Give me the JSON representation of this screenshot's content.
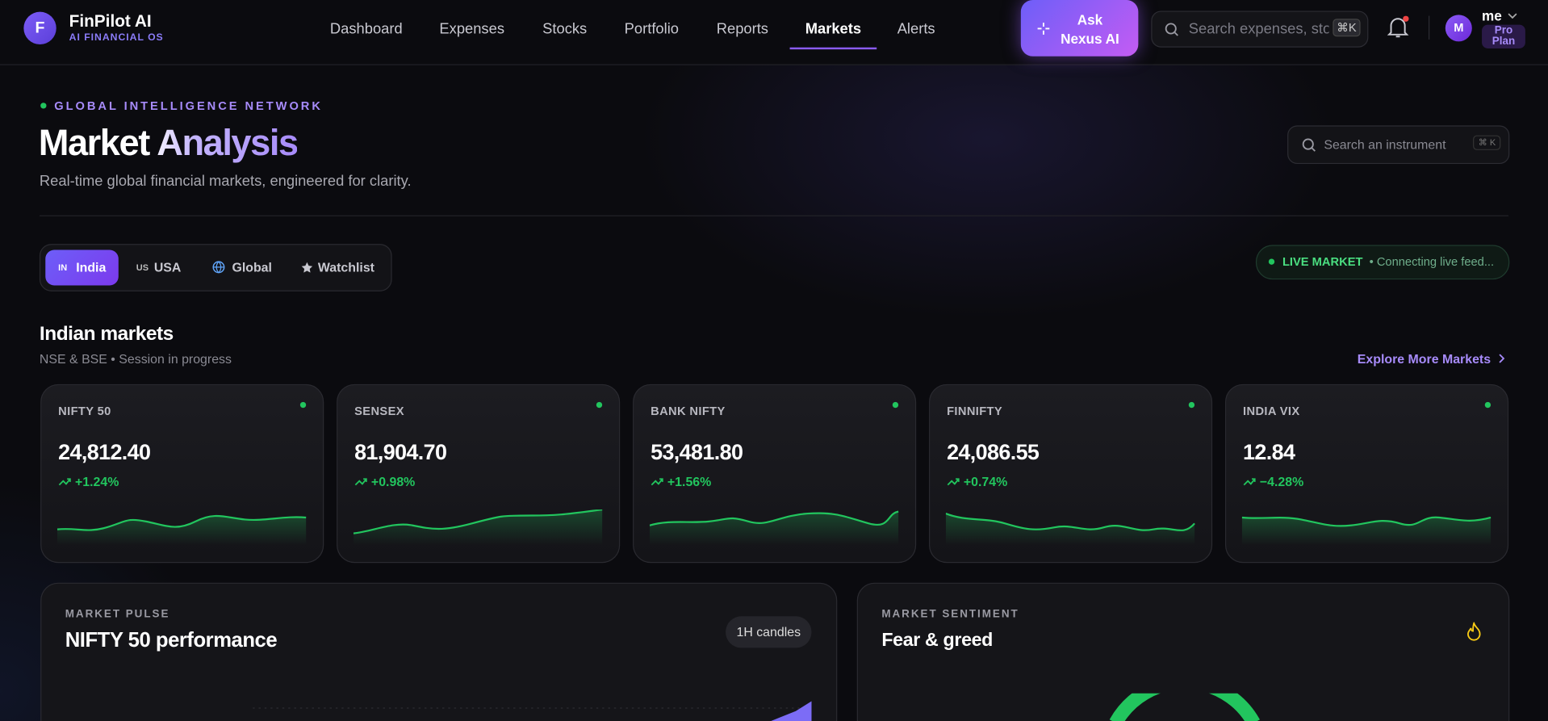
{
  "brand": {
    "logo": "F",
    "name": "FinPilot AI",
    "tagline": "AI FINANCIAL OS"
  },
  "nav": [
    "Dashboard",
    "Expenses",
    "Stocks",
    "Portfolio",
    "Reports",
    "Markets",
    "Alerts"
  ],
  "ask_button": "Ask Nexus AI",
  "search": {
    "placeholder": "Search expenses, stoc",
    "shortcut": "⌘K"
  },
  "user": {
    "avatar": "M",
    "name": "me",
    "plan": "Pro Plan"
  },
  "page": {
    "eyebrow": "GLOBAL INTELLIGENCE NETWORK",
    "title": "Market Analysis",
    "subtitle": "Real-time global financial markets, engineered for clarity.",
    "instrument_search": "Search an instrument",
    "instrument_shortcut": "⌘ K"
  },
  "tabs": [
    {
      "flag": "IN",
      "label": "India"
    },
    {
      "flag": "US",
      "label": "USA"
    },
    {
      "label": "Global"
    },
    {
      "label": "Watchlist"
    }
  ],
  "live": {
    "status": "LIVE MARKET",
    "message": "• Connecting live feed..."
  },
  "section": {
    "title": "Indian markets",
    "subtitle": "NSE & BSE • Session in progress",
    "link": "Explore More Markets"
  },
  "cards": [
    {
      "name": "NIFTY 50",
      "value": "24,812.40",
      "change": "+1.24%"
    },
    {
      "name": "SENSEX",
      "value": "81,904.70",
      "change": "+0.98%"
    },
    {
      "name": "BANK NIFTY",
      "value": "53,481.80",
      "change": "+1.56%"
    },
    {
      "name": "FINNIFTY",
      "value": "24,086.55",
      "change": "+0.74%"
    },
    {
      "name": "INDIA VIX",
      "value": "12.84",
      "change": "−4.28%"
    }
  ],
  "pulse": {
    "eyebrow": "MARKET PULSE",
    "title": "NIFTY 50 performance",
    "badge": "1H candles"
  },
  "sentiment": {
    "eyebrow": "MARKET SENTIMENT",
    "title": "Fear & greed"
  }
}
